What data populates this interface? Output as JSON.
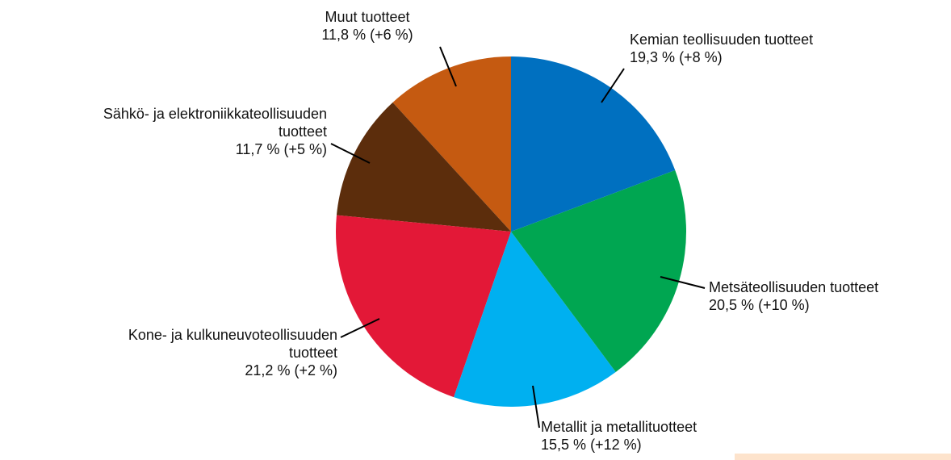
{
  "chart_data": {
    "type": "pie",
    "categories": [
      "Kemian teollisuuden tuotteet",
      "Metsäteollisuuden tuotteet",
      "Metallit ja metallituotteet",
      "Kone- ja kulkuneuvoteollisuuden\ntuotteet",
      "Sähkö- ja elektroniikkateollisuuden\ntuotteet",
      "Muut tuotteet"
    ],
    "values": [
      19.3,
      20.5,
      15.5,
      21.2,
      11.7,
      11.8
    ],
    "value_labels": [
      "19,3 %",
      "20,5 %",
      "15,5 %",
      "21,2 %",
      "11,7 %",
      "11,8 %"
    ],
    "change_labels": [
      "(+8 %)",
      "(+10 %)",
      "(+12 %)",
      "(+2 %)",
      "(+5 %)",
      "(+6 %)"
    ],
    "colors": [
      "#0070c0",
      "#00a651",
      "#00b0f0",
      "#e31837",
      "#5c2d0c",
      "#c55a11"
    ]
  }
}
